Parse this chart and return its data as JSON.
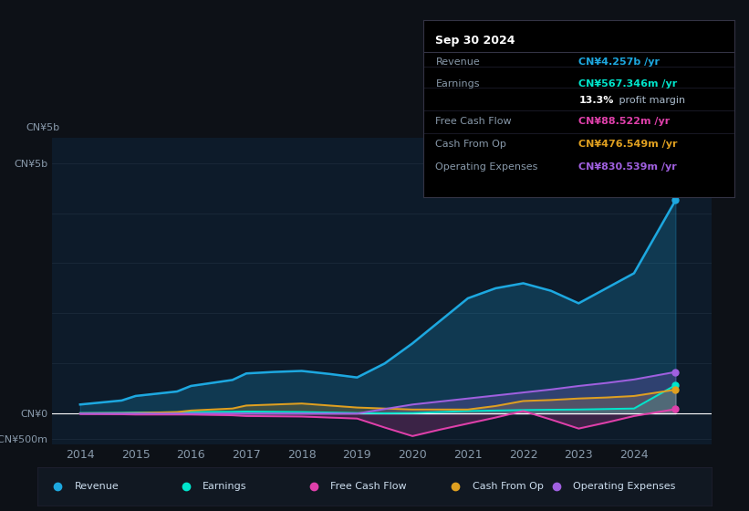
{
  "bg_color": "#0d1117",
  "plot_bg_color": "#0d1b2a",
  "grid_color": "#1e2d3d",
  "text_color": "#8899aa",
  "title_color": "#ffffff",
  "years": [
    2014,
    2014.75,
    2015,
    2015.75,
    2016,
    2016.75,
    2017,
    2017.5,
    2018,
    2018.5,
    2019,
    2019.5,
    2020,
    2020.5,
    2021,
    2021.5,
    2022,
    2022.5,
    2023,
    2023.5,
    2024,
    2024.75
  ],
  "revenue": [
    0.18,
    0.26,
    0.35,
    0.44,
    0.55,
    0.67,
    0.8,
    0.83,
    0.85,
    0.79,
    0.72,
    1.0,
    1.4,
    1.85,
    2.3,
    2.5,
    2.6,
    2.45,
    2.2,
    2.5,
    2.8,
    4.257
  ],
  "earnings": [
    0.01,
    0.015,
    0.02,
    0.025,
    0.03,
    0.035,
    0.04,
    0.035,
    0.03,
    0.02,
    0.01,
    0.005,
    0.01,
    0.03,
    0.05,
    0.06,
    0.07,
    0.075,
    0.08,
    0.09,
    0.1,
    0.567
  ],
  "free_cash_flow": [
    -0.01,
    -0.015,
    -0.02,
    -0.02,
    -0.02,
    -0.035,
    -0.05,
    -0.055,
    -0.06,
    -0.08,
    -0.1,
    -0.28,
    -0.45,
    -0.32,
    -0.2,
    -0.08,
    0.05,
    -0.12,
    -0.3,
    -0.18,
    -0.05,
    0.088
  ],
  "cash_from_op": [
    0.005,
    0.007,
    0.01,
    0.03,
    0.06,
    0.1,
    0.16,
    0.18,
    0.2,
    0.16,
    0.12,
    0.1,
    0.08,
    0.08,
    0.08,
    0.15,
    0.25,
    0.27,
    0.3,
    0.32,
    0.35,
    0.476
  ],
  "operating_expenses": [
    0.0,
    0.0,
    0.0,
    0.0,
    0.0,
    0.0,
    0.0,
    0.0,
    0.0,
    0.0,
    0.0,
    0.09,
    0.18,
    0.24,
    0.3,
    0.36,
    0.42,
    0.48,
    0.55,
    0.61,
    0.68,
    0.83
  ],
  "revenue_color": "#1da8e0",
  "earnings_color": "#00e5cc",
  "free_cash_flow_color": "#e040ab",
  "cash_from_op_color": "#e0a020",
  "operating_expenses_color": "#a060e0",
  "ylim_min": -0.62,
  "ylim_max": 5.5,
  "xticks": [
    2014,
    2015,
    2016,
    2017,
    2018,
    2019,
    2020,
    2021,
    2022,
    2023,
    2024
  ],
  "info_box": {
    "title": "Sep 30 2024",
    "rows": [
      {
        "label": "Revenue",
        "value": "CN¥4.257b /yr",
        "value_color": "#1da8e0"
      },
      {
        "label": "Earnings",
        "value": "CN¥567.346m /yr",
        "value_color": "#00e5cc"
      },
      {
        "label": "",
        "value": "13.3% profit margin",
        "value_color": "#ffffff",
        "bold_part": "13.3%"
      },
      {
        "label": "Free Cash Flow",
        "value": "CN¥88.522m /yr",
        "value_color": "#e040ab"
      },
      {
        "label": "Cash From Op",
        "value": "CN¥476.549m /yr",
        "value_color": "#e0a020"
      },
      {
        "label": "Operating Expenses",
        "value": "CN¥830.539m /yr",
        "value_color": "#a060e0"
      }
    ]
  },
  "legend_items": [
    {
      "label": "Revenue",
      "color": "#1da8e0"
    },
    {
      "label": "Earnings",
      "color": "#00e5cc"
    },
    {
      "label": "Free Cash Flow",
      "color": "#e040ab"
    },
    {
      "label": "Cash From Op",
      "color": "#e0a020"
    },
    {
      "label": "Operating Expenses",
      "color": "#a060e0"
    }
  ]
}
